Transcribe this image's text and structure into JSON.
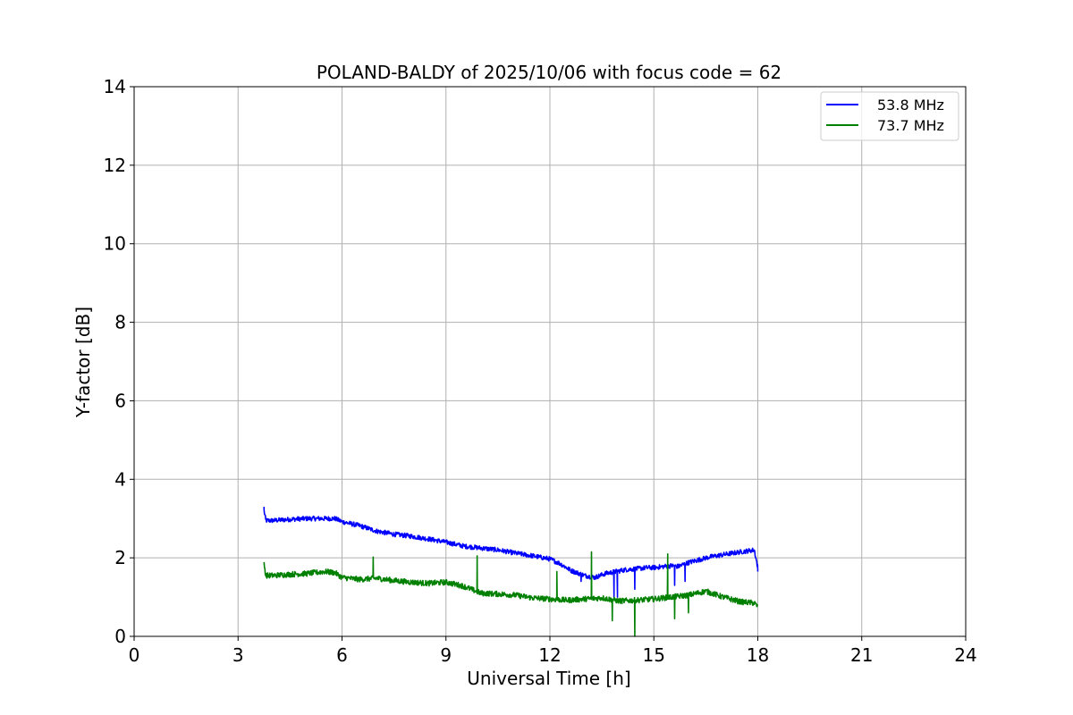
{
  "chart_data": {
    "type": "line",
    "title": "POLAND-BALDY of 2025/10/06 with focus code = 62",
    "xlabel": "Universal Time [h]",
    "ylabel": "Y-factor [dB]",
    "xlim": [
      0,
      24
    ],
    "ylim": [
      0,
      14
    ],
    "xticks": [
      0,
      3,
      6,
      9,
      12,
      15,
      18,
      21,
      24
    ],
    "yticks": [
      0,
      2,
      4,
      6,
      8,
      10,
      12,
      14
    ],
    "grid": true,
    "legend_position": "top-right",
    "series": [
      {
        "name": "53.8 MHz",
        "color": "#0000ff",
        "noise": 0.06,
        "x": [
          3.75,
          3.8,
          4.0,
          4.5,
          5.0,
          5.5,
          5.8,
          6.0,
          6.5,
          7.0,
          7.5,
          8.0,
          8.5,
          9.0,
          9.5,
          10.0,
          10.5,
          11.0,
          11.5,
          12.0,
          12.3,
          12.6,
          13.0,
          13.3,
          13.6,
          13.9,
          14.2,
          14.5,
          14.8,
          15.0,
          15.3,
          15.5,
          15.7,
          16.0,
          16.3,
          16.6,
          17.0,
          17.5,
          17.9,
          18.0
        ],
        "y": [
          3.2,
          2.95,
          2.95,
          2.98,
          3.0,
          3.0,
          3.0,
          2.92,
          2.82,
          2.68,
          2.6,
          2.55,
          2.48,
          2.4,
          2.3,
          2.25,
          2.2,
          2.12,
          2.05,
          1.97,
          1.85,
          1.68,
          1.55,
          1.5,
          1.6,
          1.65,
          1.7,
          1.72,
          1.75,
          1.75,
          1.78,
          1.8,
          1.78,
          1.88,
          1.95,
          2.02,
          2.08,
          2.15,
          2.2,
          1.75
        ],
        "spikes": [
          [
            3.75,
            3.3
          ],
          [
            12.9,
            1.4
          ],
          [
            13.85,
            1.0
          ],
          [
            13.95,
            1.0
          ],
          [
            14.45,
            1.2
          ],
          [
            15.6,
            1.3
          ],
          [
            15.9,
            1.4
          ],
          [
            18.0,
            1.65
          ]
        ]
      },
      {
        "name": "73.7 MHz",
        "color": "#008000",
        "noise": 0.07,
        "x": [
          3.75,
          3.8,
          4.0,
          4.5,
          5.0,
          5.5,
          5.8,
          6.0,
          6.5,
          7.0,
          7.5,
          8.0,
          8.5,
          9.0,
          9.5,
          10.0,
          10.5,
          11.0,
          11.5,
          12.0,
          12.5,
          13.0,
          13.5,
          14.0,
          14.5,
          15.0,
          15.5,
          16.0,
          16.5,
          17.0,
          17.5,
          17.9,
          18.0
        ],
        "y": [
          1.85,
          1.55,
          1.55,
          1.58,
          1.6,
          1.65,
          1.62,
          1.5,
          1.45,
          1.48,
          1.42,
          1.38,
          1.35,
          1.38,
          1.28,
          1.1,
          1.08,
          1.05,
          0.98,
          0.95,
          0.92,
          0.95,
          0.98,
          0.9,
          0.92,
          0.95,
          1.0,
          1.05,
          1.15,
          1.0,
          0.88,
          0.85,
          0.75
        ],
        "spikes": [
          [
            6.9,
            2.02
          ],
          [
            9.9,
            2.05
          ],
          [
            12.2,
            1.65
          ],
          [
            13.2,
            2.15
          ],
          [
            13.8,
            0.4
          ],
          [
            14.45,
            0.0
          ],
          [
            15.4,
            2.1
          ],
          [
            15.6,
            0.45
          ],
          [
            16.0,
            0.6
          ]
        ]
      }
    ]
  }
}
